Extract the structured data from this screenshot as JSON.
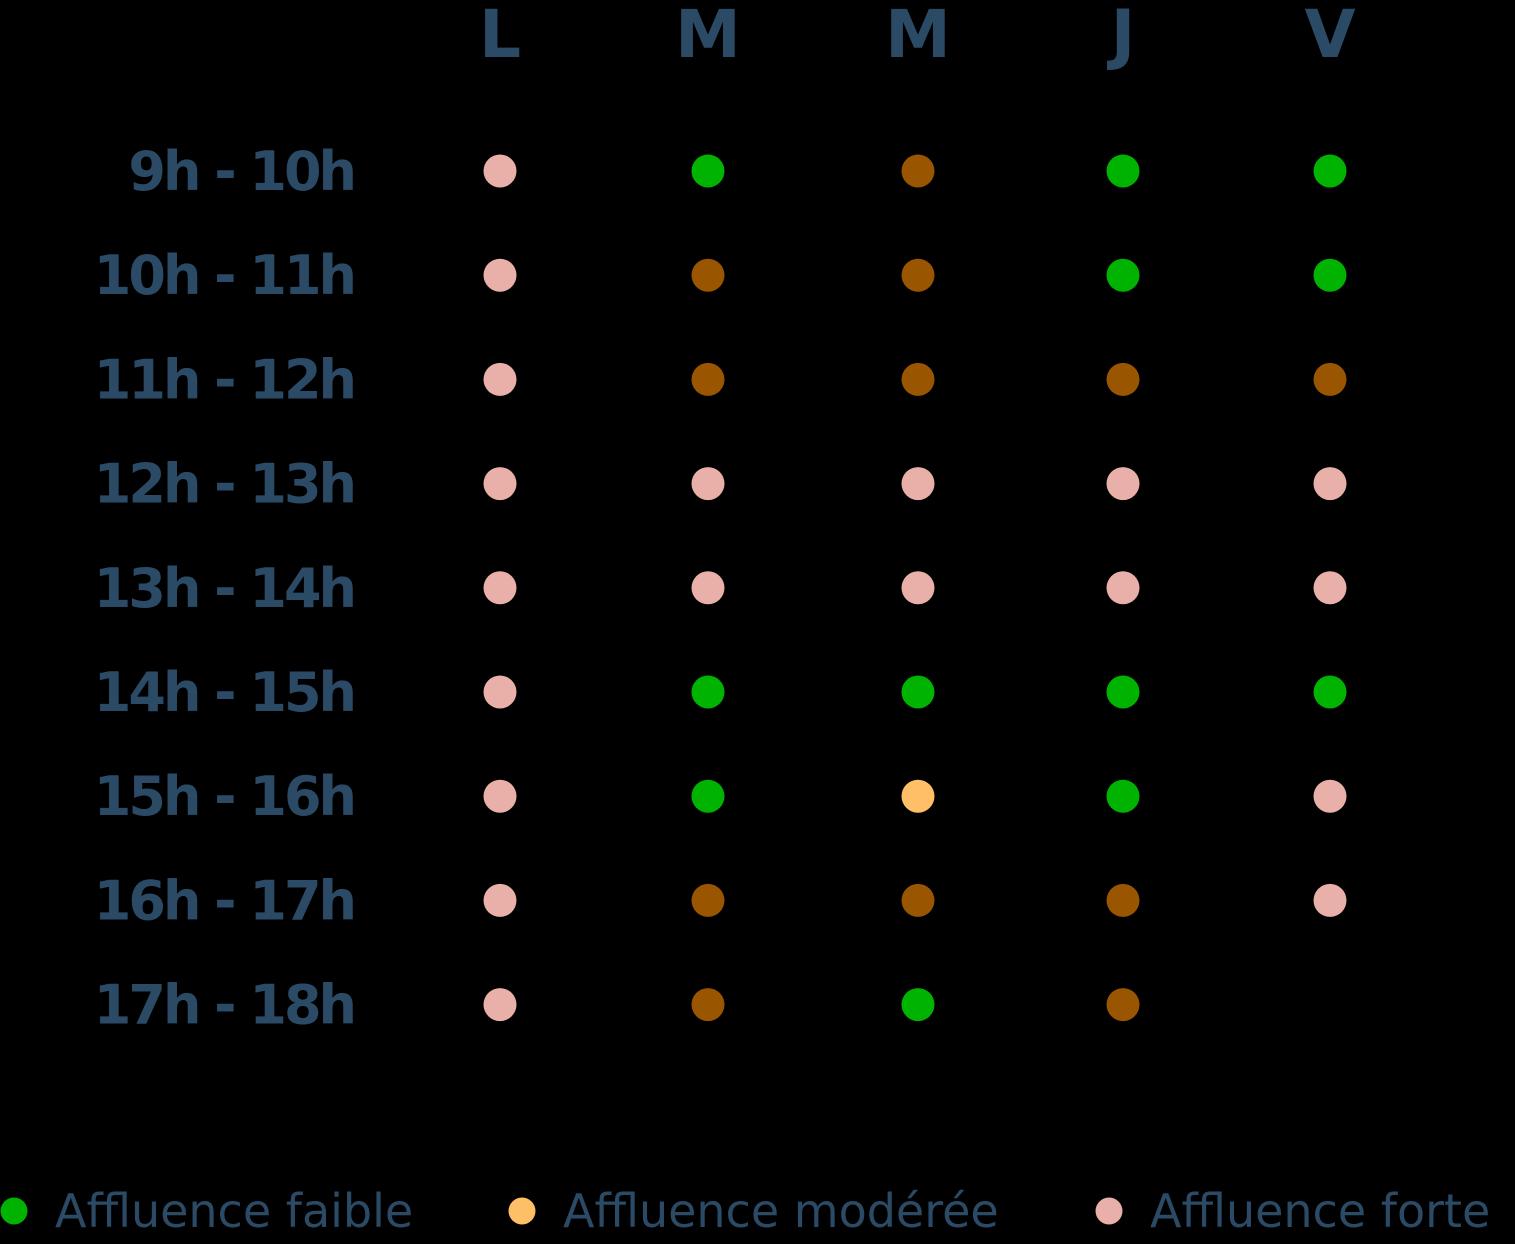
{
  "chart_data": {
    "type": "heatmap",
    "title": "",
    "columns": [
      "L",
      "M",
      "M",
      "J",
      "V"
    ],
    "rows": [
      "9h - 10h",
      "10h - 11h",
      "11h - 12h",
      "12h - 13h",
      "13h - 14h",
      "14h - 15h",
      "15h - 16h",
      "16h - 17h",
      "17h - 18h"
    ],
    "levels": {
      "faible": {
        "label": "Affluence faible",
        "color": "#00b300"
      },
      "moderee": {
        "label": "Affluence modérée",
        "color": "#ffbf66"
      },
      "forte": {
        "label": "Affluence forte",
        "color": "#e8b0a8"
      },
      "dark": {
        "label": "",
        "color": "#995500"
      }
    },
    "cells": [
      [
        "forte",
        "faible",
        "dark",
        "faible",
        "faible"
      ],
      [
        "forte",
        "dark",
        "dark",
        "faible",
        "faible"
      ],
      [
        "forte",
        "dark",
        "dark",
        "dark",
        "dark"
      ],
      [
        "forte",
        "forte",
        "forte",
        "forte",
        "forte"
      ],
      [
        "forte",
        "forte",
        "forte",
        "forte",
        "forte"
      ],
      [
        "forte",
        "faible",
        "faible",
        "faible",
        "faible"
      ],
      [
        "forte",
        "faible",
        "moderee",
        "faible",
        "forte"
      ],
      [
        "forte",
        "dark",
        "dark",
        "dark",
        "forte"
      ],
      [
        "forte",
        "dark",
        "faible",
        "dark",
        null
      ]
    ],
    "legend": [
      "faible",
      "moderee",
      "forte"
    ],
    "legend_placement": "bottom",
    "grid": false
  }
}
